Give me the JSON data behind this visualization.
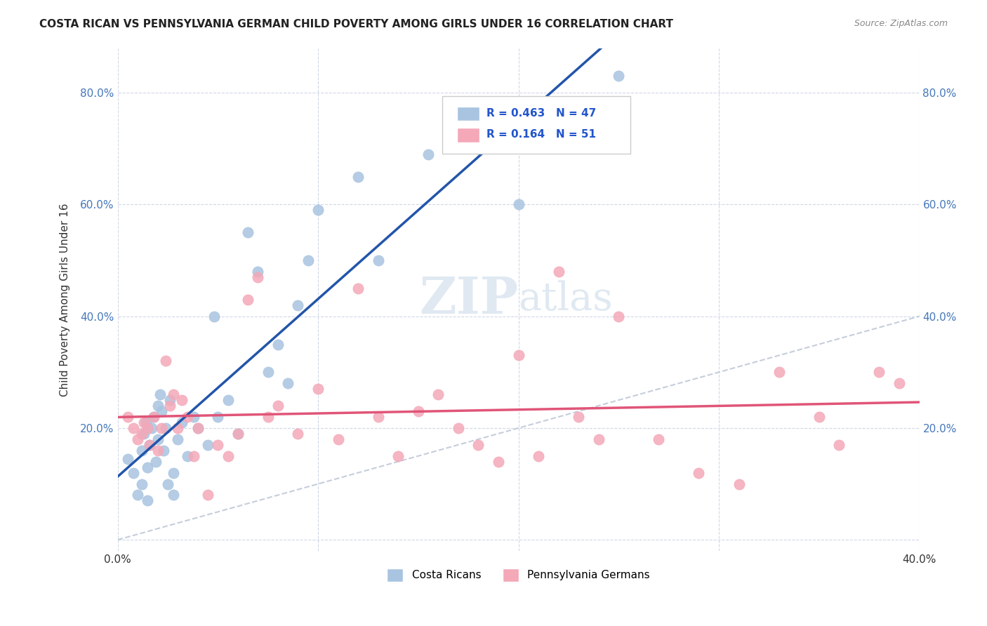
{
  "title": "COSTA RICAN VS PENNSYLVANIA GERMAN CHILD POVERTY AMONG GIRLS UNDER 16 CORRELATION CHART",
  "source": "Source: ZipAtlas.com",
  "ylabel": "Child Poverty Among Girls Under 16",
  "xlim": [
    0.0,
    0.4
  ],
  "ylim": [
    -0.02,
    0.88
  ],
  "legend_r1": "R = 0.463",
  "legend_n1": "N = 47",
  "legend_r2": "R = 0.164",
  "legend_n2": "N = 51",
  "blue_color": "#a8c4e0",
  "blue_line_color": "#2255aa",
  "pink_color": "#f4a8b8",
  "pink_line_color": "#e05578",
  "diagonal_color": "#c0c8d8",
  "blue_scatter_x": [
    0.005,
    0.008,
    0.01,
    0.012,
    0.012,
    0.013,
    0.014,
    0.015,
    0.015,
    0.016,
    0.017,
    0.018,
    0.019,
    0.02,
    0.02,
    0.021,
    0.022,
    0.023,
    0.024,
    0.025,
    0.026,
    0.028,
    0.028,
    0.03,
    0.032,
    0.035,
    0.038,
    0.04,
    0.045,
    0.048,
    0.05,
    0.055,
    0.06,
    0.065,
    0.07,
    0.075,
    0.08,
    0.085,
    0.09,
    0.095,
    0.1,
    0.12,
    0.13,
    0.155,
    0.18,
    0.2,
    0.25
  ],
  "blue_scatter_y": [
    0.145,
    0.12,
    0.08,
    0.1,
    0.16,
    0.19,
    0.21,
    0.07,
    0.13,
    0.17,
    0.2,
    0.22,
    0.14,
    0.18,
    0.24,
    0.26,
    0.23,
    0.16,
    0.2,
    0.1,
    0.25,
    0.08,
    0.12,
    0.18,
    0.21,
    0.15,
    0.22,
    0.2,
    0.17,
    0.4,
    0.22,
    0.25,
    0.19,
    0.55,
    0.48,
    0.3,
    0.35,
    0.28,
    0.42,
    0.5,
    0.59,
    0.65,
    0.5,
    0.69,
    0.7,
    0.6,
    0.83
  ],
  "pink_scatter_x": [
    0.005,
    0.008,
    0.01,
    0.012,
    0.013,
    0.015,
    0.016,
    0.018,
    0.02,
    0.022,
    0.024,
    0.026,
    0.028,
    0.03,
    0.032,
    0.035,
    0.038,
    0.04,
    0.045,
    0.05,
    0.055,
    0.06,
    0.065,
    0.07,
    0.075,
    0.08,
    0.09,
    0.1,
    0.11,
    0.12,
    0.13,
    0.14,
    0.15,
    0.16,
    0.17,
    0.18,
    0.19,
    0.2,
    0.21,
    0.22,
    0.23,
    0.24,
    0.25,
    0.27,
    0.29,
    0.31,
    0.33,
    0.35,
    0.36,
    0.38,
    0.39
  ],
  "pink_scatter_y": [
    0.22,
    0.2,
    0.18,
    0.19,
    0.21,
    0.2,
    0.17,
    0.22,
    0.16,
    0.2,
    0.32,
    0.24,
    0.26,
    0.2,
    0.25,
    0.22,
    0.15,
    0.2,
    0.08,
    0.17,
    0.15,
    0.19,
    0.43,
    0.47,
    0.22,
    0.24,
    0.19,
    0.27,
    0.18,
    0.45,
    0.22,
    0.15,
    0.23,
    0.26,
    0.2,
    0.17,
    0.14,
    0.33,
    0.15,
    0.48,
    0.22,
    0.18,
    0.4,
    0.18,
    0.12,
    0.1,
    0.3,
    0.22,
    0.17,
    0.3,
    0.28
  ]
}
